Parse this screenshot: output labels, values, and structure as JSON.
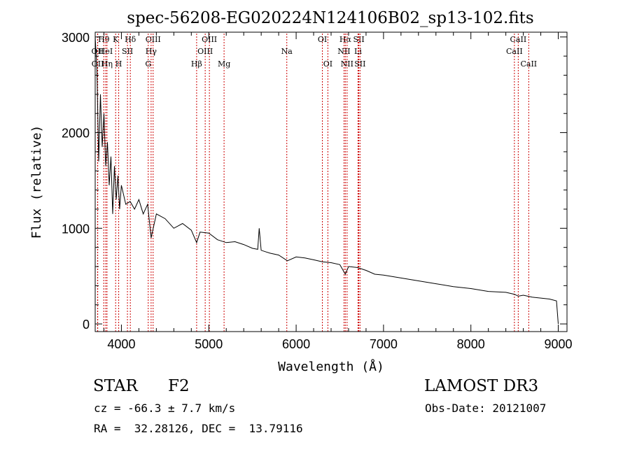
{
  "chart_data": {
    "type": "line",
    "title": "spec-56208-EG020224N124106B02_sp13-102.fits",
    "xlabel": "Wavelength (Å)",
    "ylabel": "Flux (relative)",
    "xlim": [
      3700,
      9100
    ],
    "ylim": [
      -80,
      3050
    ],
    "x_ticks": [
      4000,
      5000,
      6000,
      7000,
      8000,
      9000
    ],
    "y_ticks": [
      0,
      1000,
      2000,
      3000
    ],
    "grid": false,
    "series": [
      {
        "name": "flux",
        "x": [
          3700,
          3720,
          3740,
          3760,
          3780,
          3800,
          3820,
          3840,
          3860,
          3880,
          3900,
          3920,
          3940,
          3960,
          3980,
          4000,
          4050,
          4100,
          4150,
          4200,
          4250,
          4300,
          4340,
          4400,
          4500,
          4600,
          4700,
          4800,
          4861,
          4900,
          5000,
          5100,
          5200,
          5300,
          5400,
          5500,
          5560,
          5577,
          5600,
          5700,
          5800,
          5900,
          6000,
          6100,
          6200,
          6300,
          6400,
          6500,
          6563,
          6600,
          6700,
          6800,
          6900,
          7000,
          7200,
          7400,
          7600,
          7800,
          8000,
          8200,
          8400,
          8500,
          8542,
          8600,
          8700,
          8800,
          8900,
          8980,
          9000
        ],
        "y": [
          3000,
          2650,
          1700,
          2400,
          1850,
          2200,
          1650,
          1900,
          1450,
          1750,
          1150,
          1650,
          1300,
          1550,
          1200,
          1450,
          1250,
          1280,
          1200,
          1300,
          1150,
          1250,
          900,
          1150,
          1100,
          1000,
          1050,
          980,
          850,
          960,
          950,
          880,
          850,
          860,
          830,
          790,
          780,
          1000,
          770,
          740,
          720,
          660,
          700,
          690,
          670,
          650,
          640,
          620,
          520,
          600,
          590,
          560,
          520,
          510,
          480,
          450,
          420,
          390,
          370,
          340,
          330,
          310,
          290,
          300,
          280,
          270,
          260,
          240,
          0
        ]
      }
    ],
    "lines": [
      {
        "name": "OII",
        "wavelength": 3727,
        "row": 1
      },
      {
        "name": "OII",
        "wavelength": 3729,
        "row": 2
      },
      {
        "name": "Hθ",
        "wavelength": 3798,
        "row": 0
      },
      {
        "name": "HeI",
        "wavelength": 3820,
        "row": 1
      },
      {
        "name": "Hη",
        "wavelength": 3835,
        "row": 2
      },
      {
        "name": "K",
        "wavelength": 3934,
        "row": 0
      },
      {
        "name": "SII",
        "wavelength": 4069,
        "row": 1
      },
      {
        "name": "H",
        "wavelength": 3969,
        "row": 2
      },
      {
        "name": "Hδ",
        "wavelength": 4102,
        "row": 0
      },
      {
        "name": "OIII",
        "wavelength": 4363,
        "row": 0
      },
      {
        "name": "Hγ",
        "wavelength": 4340,
        "row": 1
      },
      {
        "name": "G",
        "wavelength": 4307,
        "row": 2
      },
      {
        "name": "Hβ",
        "wavelength": 4861,
        "row": 2
      },
      {
        "name": "OIII",
        "wavelength": 5007,
        "row": 0
      },
      {
        "name": "OIII",
        "wavelength": 4959,
        "row": 1
      },
      {
        "name": "Mg",
        "wavelength": 5175,
        "row": 2
      },
      {
        "name": "Na",
        "wavelength": 5893,
        "row": 1
      },
      {
        "name": "OI",
        "wavelength": 6300,
        "row": 0
      },
      {
        "name": "OI",
        "wavelength": 6363,
        "row": 2
      },
      {
        "name": "Hα",
        "wavelength": 6563,
        "row": 0
      },
      {
        "name": "NII",
        "wavelength": 6548,
        "row": 1
      },
      {
        "name": "NII",
        "wavelength": 6583,
        "row": 2
      },
      {
        "name": "SII",
        "wavelength": 6717,
        "row": 0
      },
      {
        "name": "Li",
        "wavelength": 6708,
        "row": 1
      },
      {
        "name": "SII",
        "wavelength": 6731,
        "row": 2
      },
      {
        "name": "CaII",
        "wavelength": 8542,
        "row": 0
      },
      {
        "name": "CaII",
        "wavelength": 8498,
        "row": 1
      },
      {
        "name": "CaII",
        "wavelength": 8662,
        "row": 2
      }
    ]
  },
  "info": {
    "object_class": "STAR",
    "subclass": "F2",
    "survey": "LAMOST DR3",
    "redshift": "cz = -66.3 ± 7.7 km/s",
    "obs_date": "Obs-Date: 20121007",
    "coords": "RA =  32.28126, DEC =  13.79116"
  },
  "colors": {
    "axis": "#000000",
    "spectrum": "#000000",
    "line_marker": "#cc0000"
  }
}
